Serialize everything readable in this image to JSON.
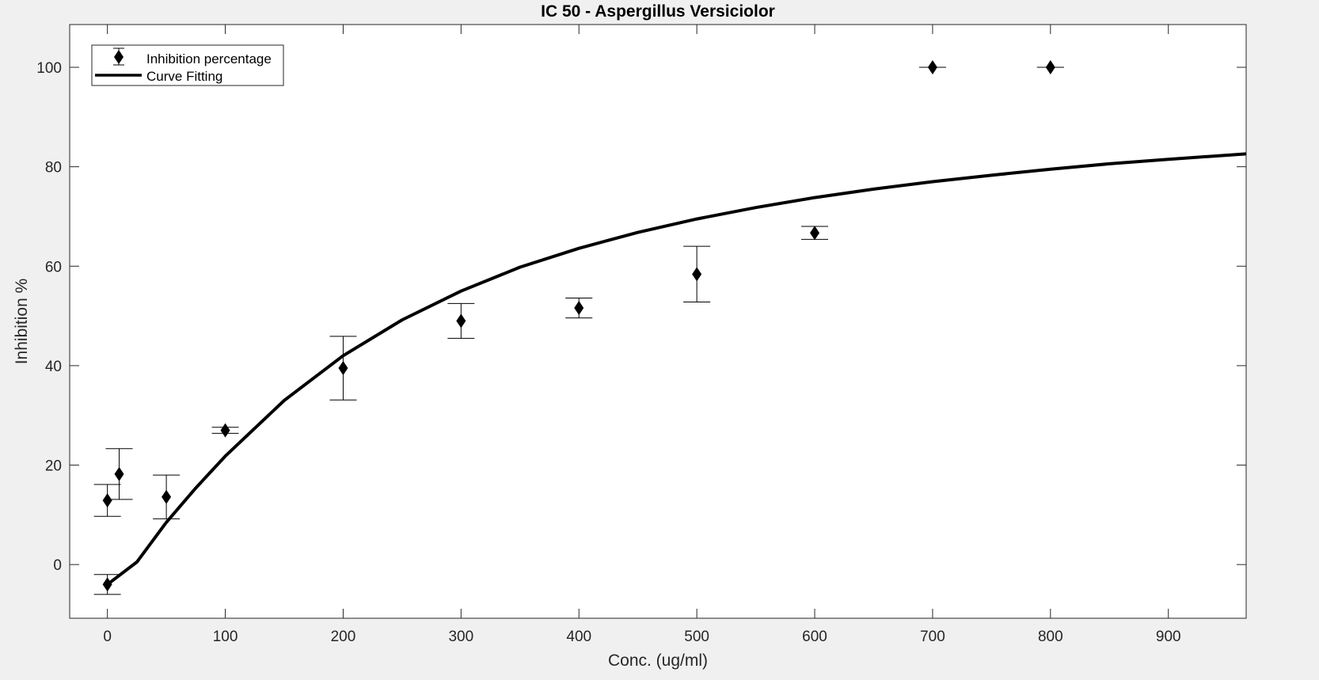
{
  "chart_data": {
    "type": "scatter",
    "title": "IC 50 - Aspergillus Versiciolor",
    "xlabel": "Conc. (ug/ml)",
    "ylabel": "Inhibition %",
    "xlim": [
      -32,
      966
    ],
    "ylim": [
      -10.8,
      108.6
    ],
    "xticks": [
      0,
      100,
      200,
      300,
      400,
      500,
      600,
      700,
      800,
      900
    ],
    "yticks": [
      0,
      20,
      40,
      60,
      80,
      100
    ],
    "grid": false,
    "legend_location": "top-left",
    "series": [
      {
        "name": "Inhibition percentage",
        "kind": "errorbar",
        "marker": "diamond",
        "color": "#000000",
        "points": [
          {
            "x": 0,
            "y": 12.9,
            "err": 3.2
          },
          {
            "x": 0,
            "y": -4.0,
            "err": 2.0
          },
          {
            "x": 10,
            "y": 18.2,
            "err": 5.1
          },
          {
            "x": 50,
            "y": 13.6,
            "err": 4.4
          },
          {
            "x": 100,
            "y": 27.0,
            "err": 0.6
          },
          {
            "x": 200,
            "y": 39.5,
            "err": 6.4
          },
          {
            "x": 300,
            "y": 49.0,
            "err": 3.5
          },
          {
            "x": 400,
            "y": 51.6,
            "err": 2.0
          },
          {
            "x": 500,
            "y": 58.4,
            "err": 5.6
          },
          {
            "x": 600,
            "y": 66.7,
            "err": 1.3
          },
          {
            "x": 700,
            "y": 100.0,
            "err": 0
          },
          {
            "x": 800,
            "y": 100.0,
            "err": 0
          }
        ]
      },
      {
        "name": "Curve Fitting",
        "kind": "line",
        "color": "#000000",
        "x": [
          0,
          25,
          50,
          75,
          100,
          150,
          200,
          250,
          300,
          350,
          400,
          450,
          500,
          550,
          600,
          650,
          700,
          750,
          800,
          850,
          900,
          966
        ],
        "y": [
          -4.0,
          0.5,
          8.5,
          15.4,
          21.8,
          33.0,
          42.0,
          49.2,
          55.0,
          59.8,
          63.6,
          66.8,
          69.5,
          71.8,
          73.8,
          75.5,
          77.0,
          78.3,
          79.5,
          80.6,
          81.5,
          82.6
        ]
      }
    ]
  }
}
